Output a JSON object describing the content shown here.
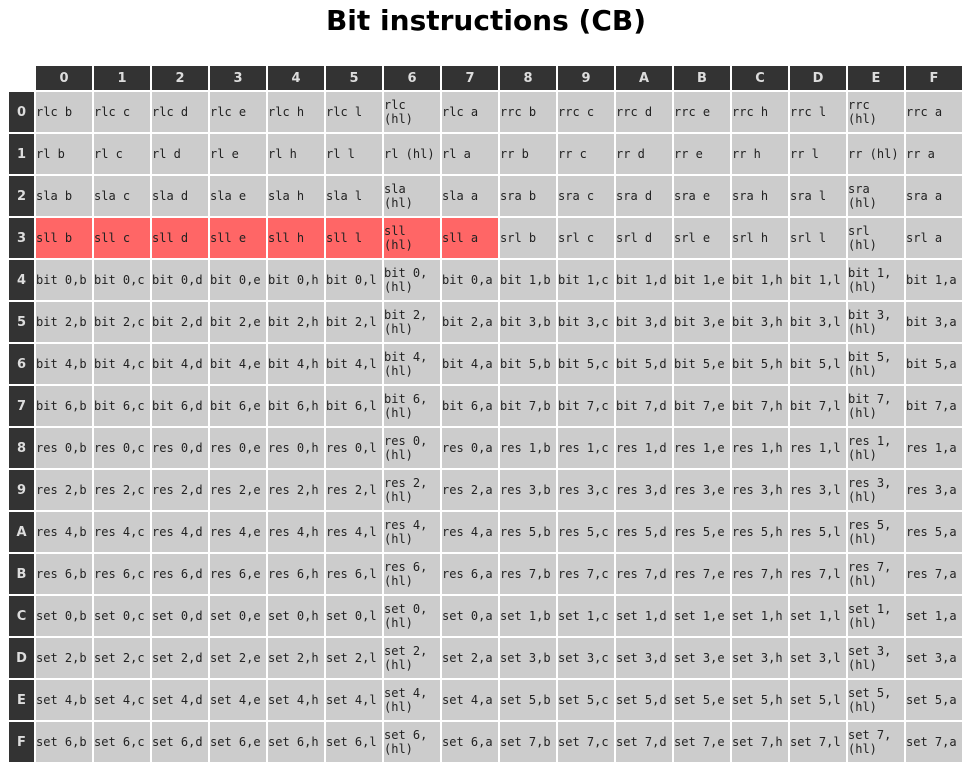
{
  "page": {
    "title": "Bit instructions (CB)"
  },
  "colors": {
    "header_bg": "#333333",
    "header_text": "#dddddd",
    "cell_bg": "#cccccc",
    "undocumented_bg": "#ff6666"
  },
  "table": {
    "col_headers": [
      "0",
      "1",
      "2",
      "3",
      "4",
      "5",
      "6",
      "7",
      "8",
      "9",
      "A",
      "B",
      "C",
      "D",
      "E",
      "F"
    ],
    "rows": [
      {
        "label": "0",
        "cells": [
          "rlc b",
          "rlc c",
          "rlc d",
          "rlc e",
          "rlc h",
          "rlc l",
          "rlc (hl)",
          "rlc a",
          "rrc b",
          "rrc c",
          "rrc d",
          "rrc e",
          "rrc h",
          "rrc l",
          "rrc (hl)",
          "rrc a"
        ]
      },
      {
        "label": "1",
        "cells": [
          "rl b",
          "rl c",
          "rl d",
          "rl e",
          "rl h",
          "rl l",
          "rl (hl)",
          "rl a",
          "rr b",
          "rr c",
          "rr d",
          "rr e",
          "rr h",
          "rr l",
          "rr (hl)",
          "rr a"
        ]
      },
      {
        "label": "2",
        "cells": [
          "sla b",
          "sla c",
          "sla d",
          "sla e",
          "sla h",
          "sla l",
          "sla (hl)",
          "sla a",
          "sra b",
          "sra c",
          "sra d",
          "sra e",
          "sra h",
          "sra l",
          "sra (hl)",
          "sra a"
        ]
      },
      {
        "label": "3",
        "cells": [
          "sll b",
          "sll c",
          "sll d",
          "sll e",
          "sll h",
          "sll l",
          "sll (hl)",
          "sll a",
          "srl b",
          "srl c",
          "srl d",
          "srl e",
          "srl h",
          "srl l",
          "srl (hl)",
          "srl a"
        ],
        "highlight": [
          0,
          1,
          2,
          3,
          4,
          5,
          6,
          7
        ]
      },
      {
        "label": "4",
        "cells": [
          "bit 0,b",
          "bit 0,c",
          "bit 0,d",
          "bit 0,e",
          "bit 0,h",
          "bit 0,l",
          "bit 0, (hl)",
          "bit 0,a",
          "bit 1,b",
          "bit 1,c",
          "bit 1,d",
          "bit 1,e",
          "bit 1,h",
          "bit 1,l",
          "bit 1, (hl)",
          "bit 1,a"
        ]
      },
      {
        "label": "5",
        "cells": [
          "bit 2,b",
          "bit 2,c",
          "bit 2,d",
          "bit 2,e",
          "bit 2,h",
          "bit 2,l",
          "bit 2, (hl)",
          "bit 2,a",
          "bit 3,b",
          "bit 3,c",
          "bit 3,d",
          "bit 3,e",
          "bit 3,h",
          "bit 3,l",
          "bit 3, (hl)",
          "bit 3,a"
        ]
      },
      {
        "label": "6",
        "cells": [
          "bit 4,b",
          "bit 4,c",
          "bit 4,d",
          "bit 4,e",
          "bit 4,h",
          "bit 4,l",
          "bit 4, (hl)",
          "bit 4,a",
          "bit 5,b",
          "bit 5,c",
          "bit 5,d",
          "bit 5,e",
          "bit 5,h",
          "bit 5,l",
          "bit 5, (hl)",
          "bit 5,a"
        ]
      },
      {
        "label": "7",
        "cells": [
          "bit 6,b",
          "bit 6,c",
          "bit 6,d",
          "bit 6,e",
          "bit 6,h",
          "bit 6,l",
          "bit 6, (hl)",
          "bit 6,a",
          "bit 7,b",
          "bit 7,c",
          "bit 7,d",
          "bit 7,e",
          "bit 7,h",
          "bit 7,l",
          "bit 7, (hl)",
          "bit 7,a"
        ]
      },
      {
        "label": "8",
        "cells": [
          "res 0,b",
          "res 0,c",
          "res 0,d",
          "res 0,e",
          "res 0,h",
          "res 0,l",
          "res 0, (hl)",
          "res 0,a",
          "res 1,b",
          "res 1,c",
          "res 1,d",
          "res 1,e",
          "res 1,h",
          "res 1,l",
          "res 1, (hl)",
          "res 1,a"
        ]
      },
      {
        "label": "9",
        "cells": [
          "res 2,b",
          "res 2,c",
          "res 2,d",
          "res 2,e",
          "res 2,h",
          "res 2,l",
          "res 2, (hl)",
          "res 2,a",
          "res 3,b",
          "res 3,c",
          "res 3,d",
          "res 3,e",
          "res 3,h",
          "res 3,l",
          "res 3, (hl)",
          "res 3,a"
        ]
      },
      {
        "label": "A",
        "cells": [
          "res 4,b",
          "res 4,c",
          "res 4,d",
          "res 4,e",
          "res 4,h",
          "res 4,l",
          "res 4, (hl)",
          "res 4,a",
          "res 5,b",
          "res 5,c",
          "res 5,d",
          "res 5,e",
          "res 5,h",
          "res 5,l",
          "res 5, (hl)",
          "res 5,a"
        ]
      },
      {
        "label": "B",
        "cells": [
          "res 6,b",
          "res 6,c",
          "res 6,d",
          "res 6,e",
          "res 6,h",
          "res 6,l",
          "res 6, (hl)",
          "res 6,a",
          "res 7,b",
          "res 7,c",
          "res 7,d",
          "res 7,e",
          "res 7,h",
          "res 7,l",
          "res 7, (hl)",
          "res 7,a"
        ]
      },
      {
        "label": "C",
        "cells": [
          "set 0,b",
          "set 0,c",
          "set 0,d",
          "set 0,e",
          "set 0,h",
          "set 0,l",
          "set 0, (hl)",
          "set 0,a",
          "set 1,b",
          "set 1,c",
          "set 1,d",
          "set 1,e",
          "set 1,h",
          "set 1,l",
          "set 1, (hl)",
          "set 1,a"
        ]
      },
      {
        "label": "D",
        "cells": [
          "set 2,b",
          "set 2,c",
          "set 2,d",
          "set 2,e",
          "set 2,h",
          "set 2,l",
          "set 2, (hl)",
          "set 2,a",
          "set 3,b",
          "set 3,c",
          "set 3,d",
          "set 3,e",
          "set 3,h",
          "set 3,l",
          "set 3, (hl)",
          "set 3,a"
        ]
      },
      {
        "label": "E",
        "cells": [
          "set 4,b",
          "set 4,c",
          "set 4,d",
          "set 4,e",
          "set 4,h",
          "set 4,l",
          "set 4, (hl)",
          "set 4,a",
          "set 5,b",
          "set 5,c",
          "set 5,d",
          "set 5,e",
          "set 5,h",
          "set 5,l",
          "set 5, (hl)",
          "set 5,a"
        ]
      },
      {
        "label": "F",
        "cells": [
          "set 6,b",
          "set 6,c",
          "set 6,d",
          "set 6,e",
          "set 6,h",
          "set 6,l",
          "set 6, (hl)",
          "set 6,a",
          "set 7,b",
          "set 7,c",
          "set 7,d",
          "set 7,e",
          "set 7,h",
          "set 7,l",
          "set 7, (hl)",
          "set 7,a"
        ]
      }
    ]
  }
}
